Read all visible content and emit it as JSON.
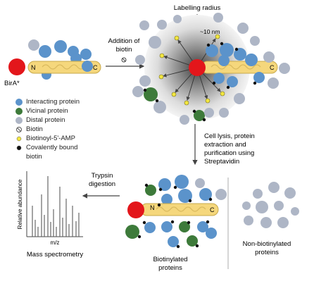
{
  "labels": {
    "labelling_radius": "Labelling radius",
    "radius_value": "~10 nm",
    "addition_line1": "Addition of",
    "addition_line2": "biotin",
    "bira": "BirA*",
    "n_term": "N",
    "c_term": "C",
    "lysis_line1": "Cell lysis, protein",
    "lysis_line2": "extraction and",
    "lysis_line3": "purification using",
    "lysis_line4": "Streptavidin",
    "trypsin_line1": "Trypsin",
    "trypsin_line2": "digestion",
    "relative_abundance": "Relative abundance",
    "mz": "m/z",
    "mass_spec": "Mass spectrometry",
    "biotinylated_line1": "Biotinylated",
    "biotinylated_line2": "proteins",
    "non_biotinylated_line1": "Non-biotinylated",
    "non_biotinylated_line2": "proteins"
  },
  "legend": [
    {
      "label": "Interacting protein",
      "color": "#5b93cb",
      "icon": "blue-circle"
    },
    {
      "label": "Vicinal protein",
      "color": "#3d7a3a",
      "icon": "green-circle"
    },
    {
      "label": "Distal protein",
      "color": "#aeb6c6",
      "icon": "grey-circle"
    },
    {
      "label": "Biotin",
      "color": "#555555",
      "icon": "biotin-icon"
    },
    {
      "label": "Biotinoyl-5'-AMP",
      "color": "#f2e640",
      "icon": "yellow-dot"
    },
    {
      "label": "Covalently bound",
      "color": "#111111",
      "icon": "black-dot"
    },
    {
      "label": "biotin",
      "color": "",
      "icon": ""
    }
  ],
  "colors": {
    "bira_red": "#e3161b",
    "bait_yellow": "#f5d77c",
    "interacting_blue": "#5b93cb",
    "vicinal_green": "#3d7a3a",
    "distal_grey": "#aeb6c6",
    "biotin_amp_yellow": "#f2e640",
    "bound_black": "#111111"
  }
}
